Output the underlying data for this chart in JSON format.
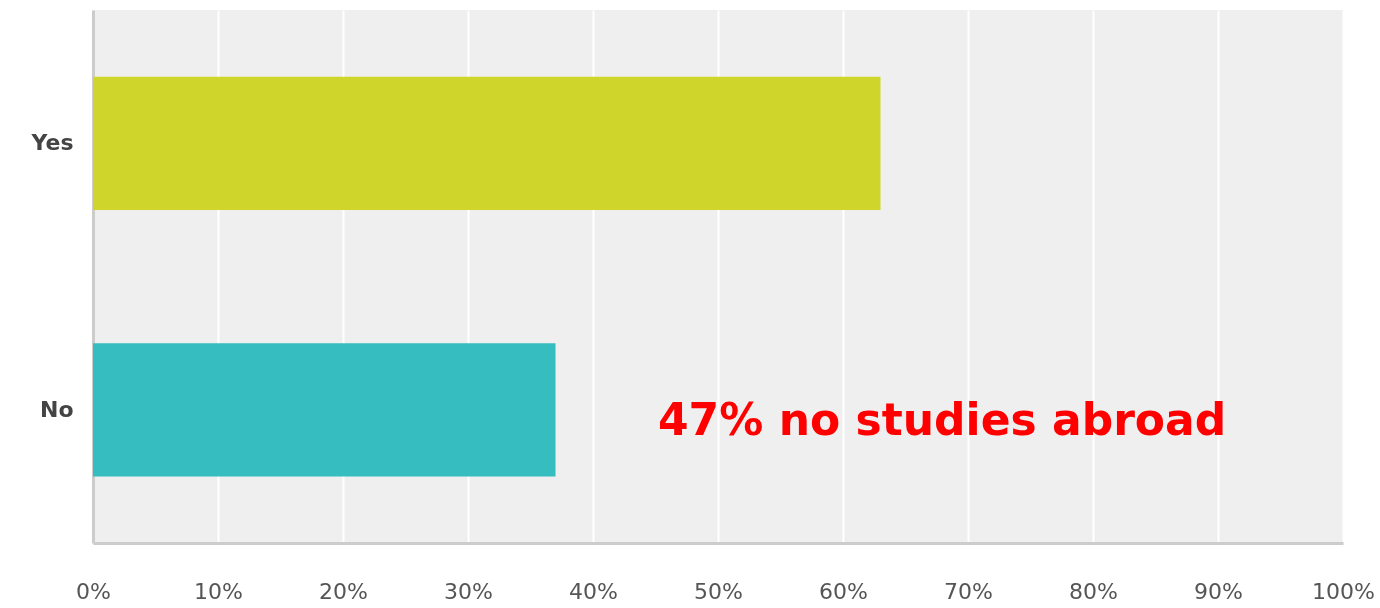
{
  "chart_data": {
    "type": "bar",
    "orientation": "horizontal",
    "categories": [
      "Yes",
      "No"
    ],
    "values": [
      63,
      37
    ],
    "colors": [
      "#cfd52a",
      "#35bdbf"
    ],
    "xlim": [
      0,
      100
    ],
    "xticks": [
      {
        "value": 0,
        "label": "0%"
      },
      {
        "value": 10,
        "label": "10%"
      },
      {
        "value": 20,
        "label": "20%"
      },
      {
        "value": 30,
        "label": "30%"
      },
      {
        "value": 40,
        "label": "40%"
      },
      {
        "value": 50,
        "label": "50%"
      },
      {
        "value": 60,
        "label": "60%"
      },
      {
        "value": 70,
        "label": "70%"
      },
      {
        "value": 80,
        "label": "80%"
      },
      {
        "value": 90,
        "label": "90%"
      },
      {
        "value": 100,
        "label": "100%"
      }
    ],
    "grid": "x",
    "annotations": [
      "47% no studies abroad"
    ]
  }
}
